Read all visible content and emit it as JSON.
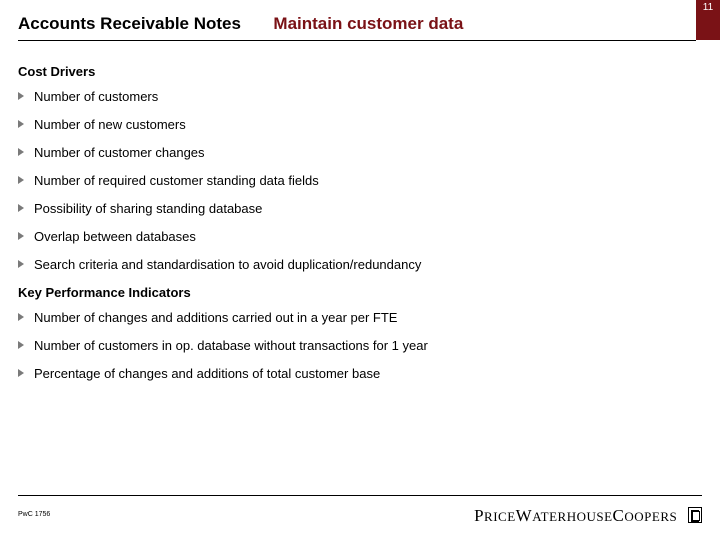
{
  "page_number": "11",
  "header": {
    "left": "Accounts Receivable Notes",
    "right": "Maintain customer data"
  },
  "sections": {
    "cost_drivers": {
      "heading": "Cost Drivers",
      "items": [
        "Number of customers",
        "Number of new customers",
        "Number of customer changes",
        "Number of required customer standing data fields",
        "Possibility of sharing standing database",
        "Overlap between databases",
        "Search criteria and standardisation to avoid duplication/redundancy"
      ]
    },
    "kpi": {
      "heading": "Key Performance Indicators",
      "items": [
        "Number of changes and additions carried out in a year per FTE",
        "Number of customers in op. database without transactions for 1 year",
        "Percentage of changes and additions of total customer base"
      ]
    }
  },
  "footer": {
    "left": "PwC 1756",
    "logo_text": "PriceWaterhouseCoopers"
  },
  "colors": {
    "accent": "#7a1216",
    "bullet": "#7a7a7a",
    "text": "#000000",
    "background": "#ffffff"
  }
}
